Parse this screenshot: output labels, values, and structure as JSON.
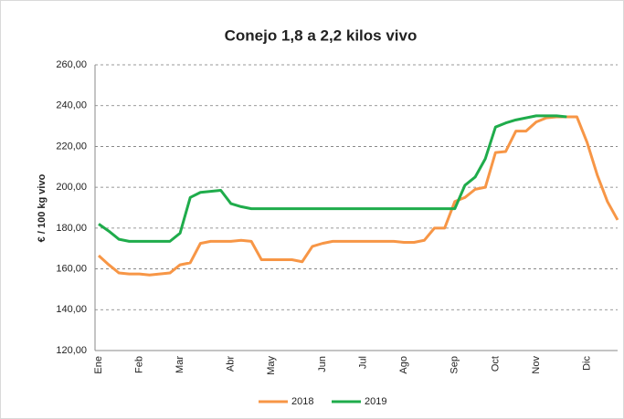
{
  "chart_data": {
    "type": "line",
    "title": "Conejo 1,8 a 2,2 kilos vivo",
    "y_label": "€ / 100 kg vivo",
    "categories": [
      "Ene",
      null,
      null,
      null,
      "Feb",
      null,
      null,
      null,
      "Mar",
      null,
      null,
      null,
      null,
      "Abr",
      null,
      null,
      null,
      "May",
      null,
      null,
      null,
      null,
      "Jun",
      null,
      null,
      null,
      "Jul",
      null,
      null,
      null,
      "Ago",
      null,
      null,
      null,
      null,
      "Sep",
      null,
      null,
      null,
      "Oct",
      null,
      null,
      null,
      "Nov",
      null,
      null,
      null,
      null,
      "Dic",
      null,
      null,
      null
    ],
    "series": [
      {
        "name": "2018",
        "color": "#f79646",
        "values": [
          166.5,
          162,
          158,
          157.5,
          157.5,
          157,
          157.5,
          158,
          162,
          163,
          172.5,
          173.5,
          173.5,
          173.5,
          174,
          173.5,
          164.5,
          164.5,
          164.5,
          164.5,
          163.5,
          171,
          172.5,
          173.5,
          173.5,
          173.5,
          173.5,
          173.5,
          173.5,
          173.5,
          173,
          173,
          174,
          180,
          180,
          193,
          195,
          199,
          200,
          217,
          217.5,
          227.5,
          227.5,
          232,
          234,
          234.5,
          234.5,
          234.5,
          222,
          206,
          193,
          184
        ]
      },
      {
        "name": "2019",
        "color": "#1fac4b",
        "values": [
          182,
          178.5,
          174.5,
          173.5,
          173.5,
          173.5,
          173.5,
          173.5,
          177.5,
          195,
          197.5,
          198,
          198.5,
          192,
          190.5,
          189.5,
          189.5,
          189.5,
          189.5,
          189.5,
          189.5,
          189.5,
          189.5,
          189.5,
          189.5,
          189.5,
          189.5,
          189.5,
          189.5,
          189.5,
          189.5,
          189.5,
          189.5,
          189.5,
          189.5,
          189.5,
          201,
          205,
          214,
          229.5,
          231.5,
          233,
          234,
          235,
          235,
          235,
          234.5,
          null,
          null,
          null,
          null,
          null
        ]
      }
    ],
    "ylim": [
      120,
      260
    ],
    "yticks": [
      {
        "value": 120,
        "label": "120,00"
      },
      {
        "value": 140,
        "label": "140,00"
      },
      {
        "value": 160,
        "label": "160,00"
      },
      {
        "value": 180,
        "label": "180,00"
      },
      {
        "value": 200,
        "label": "200,00"
      },
      {
        "value": 220,
        "label": "220,00"
      },
      {
        "value": 240,
        "label": "240,00"
      },
      {
        "value": 260,
        "label": "260,00"
      }
    ],
    "grid": true,
    "legend": "bottom"
  }
}
